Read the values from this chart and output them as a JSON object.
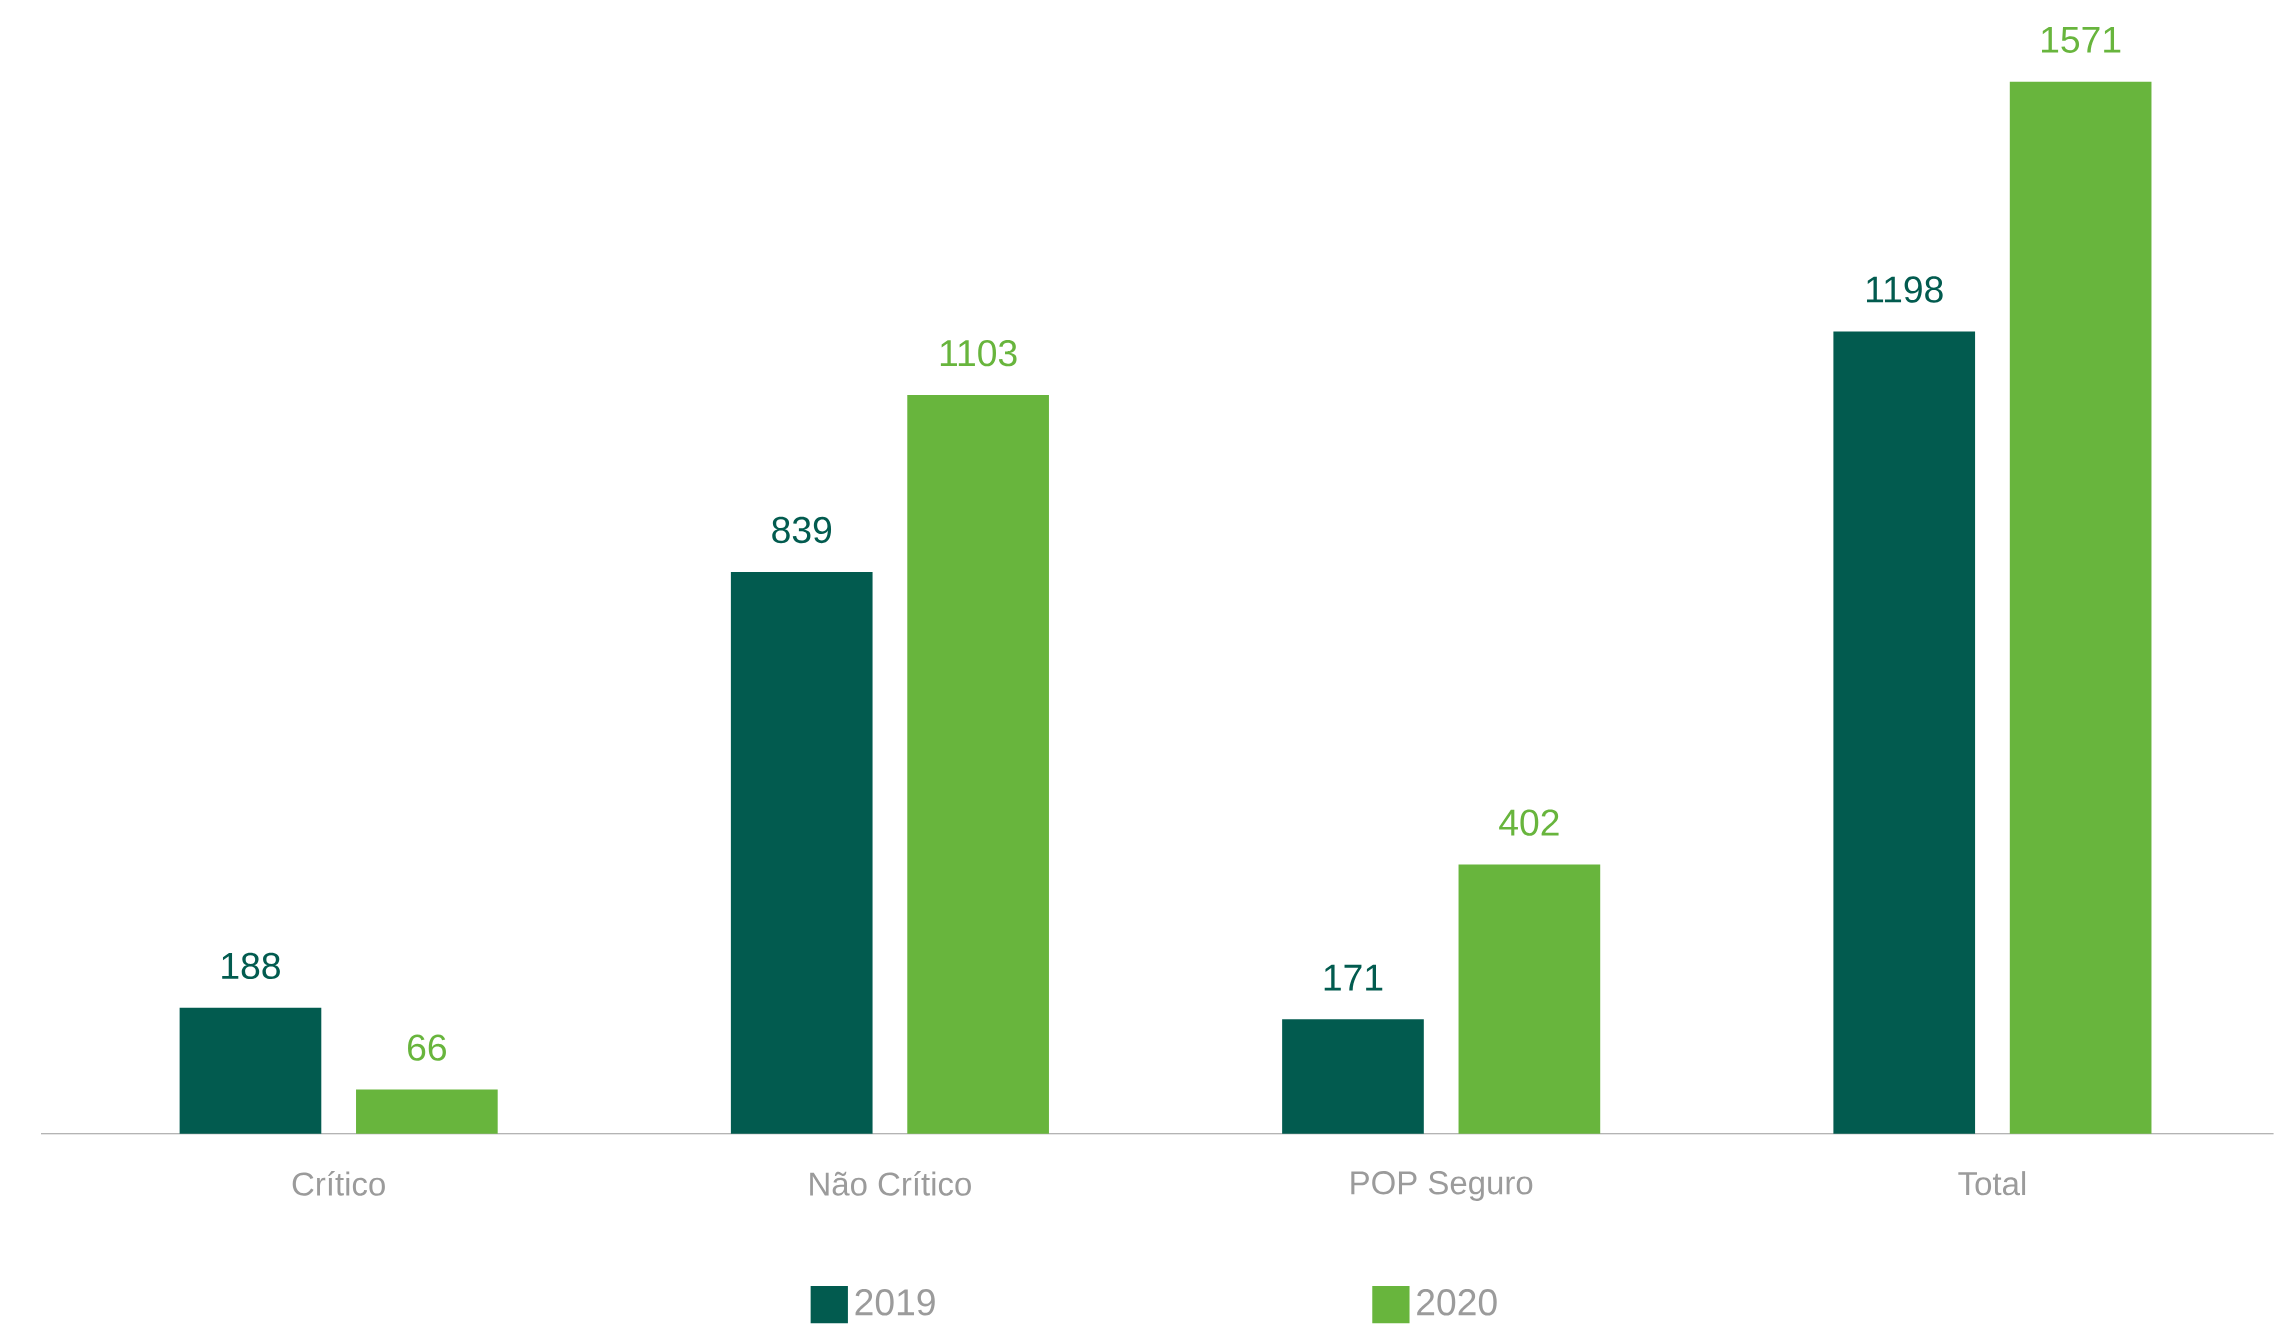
{
  "chart_data": {
    "type": "bar",
    "categories": [
      "Crítico",
      "Não Crítico",
      "POP Seguro",
      "Total"
    ],
    "series": [
      {
        "name": "2019",
        "color": "#025b4f",
        "values": [
          188,
          839,
          171,
          1198
        ]
      },
      {
        "name": "2020",
        "color": "#68b53d",
        "values": [
          66,
          1103,
          402,
          1571
        ]
      }
    ],
    "data_labels": true,
    "legend": "bottom"
  }
}
